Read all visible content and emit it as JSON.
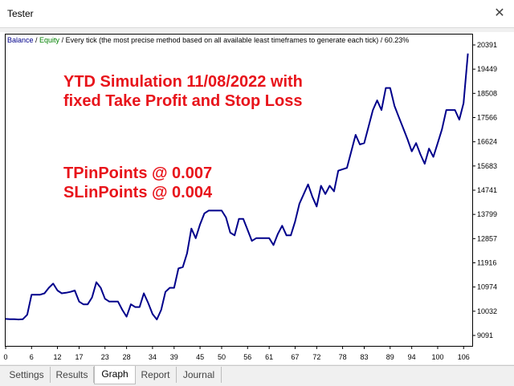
{
  "window": {
    "title": "Tester",
    "close_glyph": "✕"
  },
  "chart_header": {
    "balance_label": "Balance",
    "separator": " / ",
    "equity_label": "Equity",
    "description": " / Every tick (the most precise method based on all available least timeframes to generate each tick) / 60.23%",
    "balance_color": "#00008b",
    "equity_color": "#008000"
  },
  "annotations": {
    "title_line1": "YTD Simulation 11/08/2022  with",
    "title_line2": "fixed Take Profit and Stop Loss",
    "param_line1": "TPinPoints @ 0.007",
    "param_line2": "SLinPoints @ 0.004",
    "text_color": "#e8141b"
  },
  "chart_data": {
    "type": "line",
    "title": "",
    "xlabel": "",
    "ylabel": "",
    "x_ticks": [
      "0",
      "6",
      "12",
      "17",
      "23",
      "28",
      "34",
      "39",
      "45",
      "50",
      "56",
      "61",
      "67",
      "72",
      "78",
      "83",
      "89",
      "94",
      "100",
      "106"
    ],
    "y_ticks": [
      "20391",
      "19449",
      "18508",
      "17566",
      "16624",
      "15683",
      "14741",
      "13799",
      "12857",
      "11916",
      "10974",
      "10032",
      "9091"
    ],
    "xlim": [
      0,
      108
    ],
    "ylim": [
      9091,
      20391
    ],
    "grid": false,
    "series": [
      {
        "name": "Balance",
        "color": "#00008b",
        "x": [
          0,
          1,
          2,
          3,
          4,
          5,
          6,
          7,
          8,
          9,
          10,
          11,
          12,
          13,
          14,
          15,
          16,
          17,
          18,
          19,
          20,
          21,
          22,
          23,
          24,
          25,
          26,
          27,
          28,
          29,
          30,
          31,
          32,
          33,
          34,
          35,
          36,
          37,
          38,
          39,
          40,
          41,
          42,
          43,
          44,
          45,
          46,
          47,
          48,
          49,
          50,
          51,
          52,
          53,
          54,
          55,
          56,
          57,
          58,
          59,
          60,
          61,
          62,
          63,
          64,
          65,
          66,
          67,
          68,
          69,
          70,
          71,
          72,
          73,
          74,
          75,
          76,
          77,
          78,
          79,
          80,
          81,
          82,
          83,
          84,
          85,
          86,
          87,
          88,
          89,
          90,
          91,
          92,
          93,
          94,
          95,
          96,
          97,
          98,
          99,
          100,
          101,
          102,
          103,
          104,
          105,
          106,
          107
        ],
        "y": [
          10070,
          10060,
          10060,
          10050,
          10060,
          10220,
          10950,
          10950,
          10950,
          11000,
          11200,
          11350,
          11100,
          11000,
          11020,
          11050,
          11100,
          10700,
          10600,
          10600,
          10850,
          11400,
          11200,
          10800,
          10700,
          10700,
          10700,
          10400,
          10150,
          10600,
          10500,
          10500,
          11000,
          10650,
          10250,
          10050,
          10400,
          11050,
          11200,
          11200,
          11900,
          11950,
          12450,
          13350,
          13000,
          13500,
          13900,
          14000,
          14000,
          14000,
          14000,
          13750,
          13200,
          13100,
          13700,
          13700,
          13300,
          12900,
          13000,
          13000,
          13000,
          13000,
          12750,
          13150,
          13450,
          13100,
          13100,
          13600,
          14250,
          14600,
          14950,
          14500,
          14150,
          14900,
          14600,
          14900,
          14700,
          15450,
          15500,
          15550,
          16150,
          16750,
          16400,
          16450,
          17050,
          17650,
          18000,
          17650,
          18450,
          18450,
          17800,
          17400,
          17000,
          16600,
          16150,
          16450,
          16050,
          15700,
          16250,
          15950,
          16450,
          16950,
          17650,
          17650,
          17650,
          17300,
          17900,
          19700
        ]
      }
    ]
  },
  "tabs": [
    {
      "label": "Settings",
      "active": false
    },
    {
      "label": "Results",
      "active": false
    },
    {
      "label": "Graph",
      "active": true
    },
    {
      "label": "Report",
      "active": false
    },
    {
      "label": "Journal",
      "active": false
    }
  ]
}
